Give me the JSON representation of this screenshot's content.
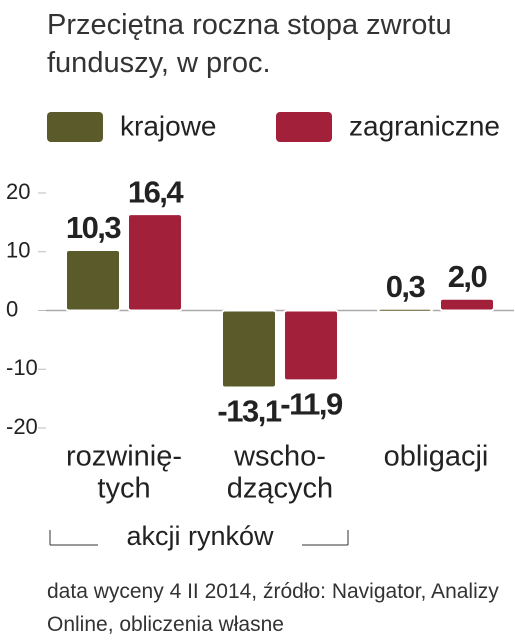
{
  "chart_data": {
    "type": "bar",
    "title": "Przeciętna roczna stopa zwrotu funduszy, w proc.",
    "categories": [
      [
        "rozwinię-",
        "tych"
      ],
      [
        "wscho-",
        "dzących"
      ],
      [
        "obligacji"
      ]
    ],
    "group_label": "akcji rynków",
    "series": [
      {
        "name": "krajowe",
        "color": "#5b5a2b",
        "values": [
          10.3,
          -13.1,
          0.3
        ],
        "value_labels": [
          "10,3",
          "-13,1",
          "0,3"
        ]
      },
      {
        "name": "zagraniczne",
        "color": "#a3203a",
        "values": [
          16.4,
          -11.9,
          2.0
        ],
        "value_labels": [
          "16,4",
          "-11,9",
          "2,0"
        ]
      }
    ],
    "ylim": [
      -20,
      20
    ],
    "yticks": [
      20,
      10,
      0,
      -10,
      -20
    ],
    "footnote": "data wyceny 4 II 2014, źródło: Navigator, Analizy Online, obliczenia własne"
  }
}
